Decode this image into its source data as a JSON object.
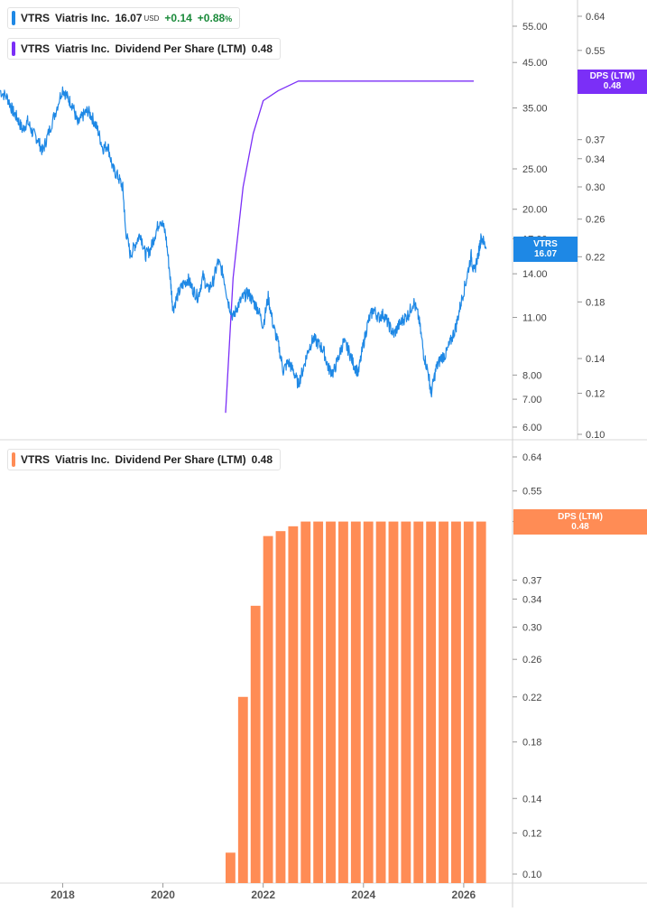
{
  "legend_price": {
    "ticker": "VTRS",
    "name": "Viatris Inc.",
    "price": "16.07",
    "currency": "USD",
    "change": "+0.14",
    "change_pct": "+0.88",
    "pct_sign": "%",
    "color": "#1e88e5"
  },
  "legend_dps_top": {
    "ticker": "VTRS",
    "name": "Viatris Inc.",
    "metric": "Dividend Per Share (LTM)",
    "value": "0.48",
    "color": "#7b2ff7"
  },
  "legend_dps_bottom": {
    "ticker": "VTRS",
    "name": "Viatris Inc.",
    "metric": "Dividend Per Share (LTM)",
    "value": "0.48",
    "color": "#ff8c55"
  },
  "tags": {
    "price": {
      "line1": "VTRS",
      "line2": "16.07",
      "color": "#1e88e5"
    },
    "dps_top": {
      "line1": "DPS (LTM)",
      "line2": "0.48",
      "color": "#7b2ff7"
    },
    "dps_bottom": {
      "line1": "DPS (LTM)",
      "line2": "0.48",
      "color": "#ff8c55"
    }
  },
  "chart_data": [
    {
      "type": "line",
      "scale": "log",
      "x_range": [
        2016.75,
        2026.65
      ],
      "price_axis": {
        "ticks": [
          "55.00",
          "45.00",
          "35.00",
          "25.00",
          "20.00",
          "17.00",
          "14.00",
          "11.00",
          "8.00",
          "7.00",
          "6.00"
        ],
        "tick_values": [
          55,
          45,
          35,
          25,
          20,
          17,
          14,
          11,
          8,
          7,
          6
        ]
      },
      "dps_axis": {
        "ticks": [
          "0.64",
          "0.55",
          "0.48",
          "0.37",
          "0.34",
          "0.30",
          "0.26",
          "0.22",
          "0.18",
          "0.14",
          "0.12",
          "0.10"
        ],
        "tick_values": [
          0.64,
          0.55,
          0.48,
          0.37,
          0.34,
          0.3,
          0.26,
          0.22,
          0.18,
          0.14,
          0.12,
          0.1
        ]
      },
      "series": [
        {
          "name": "VTRS",
          "color": "#1e88e5",
          "points": [
            [
              2016.75,
              38.5
            ],
            [
              2016.9,
              37
            ],
            [
              2017.0,
              34.5
            ],
            [
              2017.1,
              33
            ],
            [
              2017.2,
              31
            ],
            [
              2017.3,
              32.5
            ],
            [
              2017.4,
              30.5
            ],
            [
              2017.5,
              29.5
            ],
            [
              2017.6,
              27.5
            ],
            [
              2017.7,
              30
            ],
            [
              2017.85,
              34
            ],
            [
              2018.0,
              39
            ],
            [
              2018.1,
              37
            ],
            [
              2018.2,
              35.5
            ],
            [
              2018.3,
              32
            ],
            [
              2018.4,
              33.5
            ],
            [
              2018.5,
              34.5
            ],
            [
              2018.6,
              33
            ],
            [
              2018.7,
              31
            ],
            [
              2018.8,
              28
            ],
            [
              2018.9,
              28.5
            ],
            [
              2019.0,
              25
            ],
            [
              2019.1,
              24
            ],
            [
              2019.2,
              22.5
            ],
            [
              2019.25,
              18
            ],
            [
              2019.35,
              15.5
            ],
            [
              2019.45,
              16.5
            ],
            [
              2019.55,
              17.5
            ],
            [
              2019.65,
              15.5
            ],
            [
              2019.75,
              16
            ],
            [
              2019.85,
              17.5
            ],
            [
              2019.95,
              19
            ],
            [
              2020.05,
              17.5
            ],
            [
              2020.15,
              13.5
            ],
            [
              2020.2,
              11.5
            ],
            [
              2020.3,
              12.5
            ],
            [
              2020.4,
              13.2
            ],
            [
              2020.5,
              13.6
            ],
            [
              2020.6,
              12.8
            ],
            [
              2020.7,
              12.3
            ],
            [
              2020.8,
              13.8
            ],
            [
              2020.9,
              12.8
            ],
            [
              2021.0,
              13.4
            ],
            [
              2021.1,
              15
            ],
            [
              2021.2,
              14
            ],
            [
              2021.3,
              12
            ],
            [
              2021.4,
              11
            ],
            [
              2021.5,
              11.8
            ],
            [
              2021.6,
              12.3
            ],
            [
              2021.7,
              12.6
            ],
            [
              2021.8,
              12
            ],
            [
              2021.9,
              11.5
            ],
            [
              2022.0,
              10.5
            ],
            [
              2022.1,
              12.3
            ],
            [
              2022.2,
              10.5
            ],
            [
              2022.3,
              9.5
            ],
            [
              2022.4,
              8.2
            ],
            [
              2022.5,
              8.6
            ],
            [
              2022.6,
              8.2
            ],
            [
              2022.7,
              7.6
            ],
            [
              2022.8,
              8.3
            ],
            [
              2022.9,
              9.2
            ],
            [
              2023.0,
              9.8
            ],
            [
              2023.1,
              9.5
            ],
            [
              2023.2,
              9.2
            ],
            [
              2023.3,
              8.3
            ],
            [
              2023.4,
              8.1
            ],
            [
              2023.5,
              8.8
            ],
            [
              2023.6,
              9.6
            ],
            [
              2023.7,
              9.2
            ],
            [
              2023.8,
              8.5
            ],
            [
              2023.9,
              8.1
            ],
            [
              2024.0,
              9.5
            ],
            [
              2024.1,
              10.8
            ],
            [
              2024.2,
              11.5
            ],
            [
              2024.3,
              11.0
            ],
            [
              2024.4,
              11.2
            ],
            [
              2024.5,
              10.6
            ],
            [
              2024.6,
              10.0
            ],
            [
              2024.7,
              10.5
            ],
            [
              2024.8,
              10.9
            ],
            [
              2024.9,
              11.2
            ],
            [
              2025.0,
              12.0
            ],
            [
              2025.1,
              11.0
            ],
            [
              2025.2,
              9.0
            ],
            [
              2025.3,
              8.0
            ],
            [
              2025.35,
              7.2
            ],
            [
              2025.45,
              8.3
            ],
            [
              2025.55,
              8.8
            ],
            [
              2025.65,
              9.0
            ],
            [
              2025.75,
              9.7
            ],
            [
              2025.85,
              10.5
            ],
            [
              2025.95,
              12.0
            ],
            [
              2026.05,
              13.5
            ],
            [
              2026.15,
              15.5
            ],
            [
              2026.2,
              14.0
            ],
            [
              2026.3,
              15.8
            ],
            [
              2026.35,
              17.2
            ],
            [
              2026.45,
              16.07
            ]
          ]
        },
        {
          "name": "DPS (LTM)",
          "color": "#7b2ff7",
          "points": [
            [
              2021.25,
              0.11
            ],
            [
              2021.4,
              0.2
            ],
            [
              2021.6,
              0.3
            ],
            [
              2021.8,
              0.38
            ],
            [
              2022.0,
              0.44
            ],
            [
              2022.3,
              0.46
            ],
            [
              2022.7,
              0.48
            ],
            [
              2023.2,
              0.48
            ],
            [
              2024.2,
              0.48
            ],
            [
              2025.2,
              0.48
            ],
            [
              2026.2,
              0.48
            ]
          ]
        }
      ]
    },
    {
      "type": "bar",
      "scale": "log",
      "x_range": [
        2016.75,
        2026.65
      ],
      "x_ticks": [
        "2018",
        "2020",
        "2022",
        "2024",
        "2026"
      ],
      "x_tick_values": [
        2018,
        2020,
        2022,
        2024,
        2026
      ],
      "dps_axis": {
        "ticks": [
          "0.64",
          "0.55",
          "0.48",
          "0.37",
          "0.34",
          "0.30",
          "0.26",
          "0.22",
          "0.18",
          "0.14",
          "0.12",
          "0.10"
        ],
        "tick_values": [
          0.64,
          0.55,
          0.48,
          0.37,
          0.34,
          0.3,
          0.26,
          0.22,
          0.18,
          0.14,
          0.12,
          0.1
        ]
      },
      "series": [
        {
          "name": "Dividend Per Share (LTM)",
          "color": "#ff8c55",
          "x": [
            2021.25,
            2021.5,
            2021.75,
            2022.0,
            2022.25,
            2022.5,
            2022.75,
            2023.0,
            2023.25,
            2023.5,
            2023.75,
            2024.0,
            2024.25,
            2024.5,
            2024.75,
            2025.0,
            2025.25,
            2025.5,
            2025.75,
            2026.0,
            2026.25
          ],
          "values": [
            0.11,
            0.22,
            0.33,
            0.45,
            0.46,
            0.47,
            0.48,
            0.48,
            0.48,
            0.48,
            0.48,
            0.48,
            0.48,
            0.48,
            0.48,
            0.48,
            0.48,
            0.48,
            0.48,
            0.48,
            0.48
          ]
        }
      ]
    }
  ]
}
